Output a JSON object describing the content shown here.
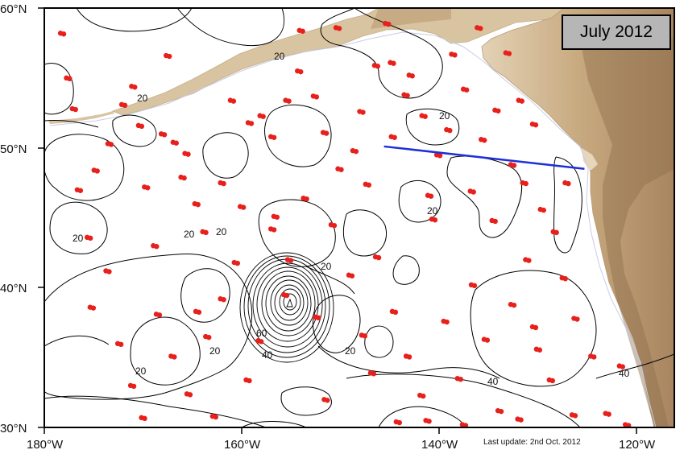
{
  "title": "July 2012",
  "update_note": "Last update: 2nd Oct. 2012",
  "x_ticks": [
    "180°W",
    "160°W",
    "140°W",
    "120°W"
  ],
  "y_ticks": [
    "60°N",
    "50°N",
    "40°N",
    "30°N"
  ],
  "contour_labels": [
    "20",
    "20",
    "20",
    "20",
    "20",
    "20",
    "20",
    "20",
    "20",
    "20",
    "40",
    "40",
    "40",
    "60",
    "20"
  ],
  "colors": {
    "land": "#c8b08c",
    "mountain": "#9a7a56",
    "float": "#e8201c",
    "section_line": "#1f2fd8",
    "contour": "#000000",
    "coast_faint": "#c8cce8"
  },
  "section_line": {
    "start_lon": -145.6,
    "start_lat": 50.1,
    "end_lon": -125.3,
    "end_lat": 48.5
  },
  "floats": [
    [
      -178.2,
      58.2
    ],
    [
      -177.0,
      52.8
    ],
    [
      -176.5,
      47.0
    ],
    [
      -175.5,
      43.6
    ],
    [
      -174.8,
      48.4
    ],
    [
      -173.4,
      50.3
    ],
    [
      -172.0,
      53.1
    ],
    [
      -171.0,
      54.4
    ],
    [
      -170.3,
      51.6
    ],
    [
      -169.7,
      47.2
    ],
    [
      -168.8,
      43.0
    ],
    [
      -168.0,
      51.0
    ],
    [
      -167.5,
      56.6
    ],
    [
      -166.8,
      50.4
    ],
    [
      -165.6,
      49.6
    ],
    [
      -164.6,
      46.0
    ],
    [
      -163.8,
      44.0
    ],
    [
      -162.0,
      47.5
    ],
    [
      -161.0,
      53.4
    ],
    [
      -160.0,
      45.8
    ],
    [
      -159.2,
      51.8
    ],
    [
      -158.0,
      52.3
    ],
    [
      -156.9,
      50.8
    ],
    [
      -155.4,
      53.4
    ],
    [
      -154.2,
      55.5
    ],
    [
      -152.6,
      53.7
    ],
    [
      -151.6,
      51.1
    ],
    [
      -150.1,
      48.5
    ],
    [
      -148.6,
      49.8
    ],
    [
      -147.3,
      47.4
    ],
    [
      -146.4,
      55.9
    ],
    [
      -144.8,
      56.1
    ],
    [
      -143.4,
      53.8
    ],
    [
      -141.6,
      52.3
    ],
    [
      -140.1,
      49.5
    ],
    [
      -139.1,
      51.3
    ],
    [
      -137.4,
      54.2
    ],
    [
      -136.7,
      46.9
    ],
    [
      -135.6,
      50.6
    ],
    [
      -134.2,
      52.7
    ],
    [
      -132.6,
      48.8
    ],
    [
      -131.4,
      47.5
    ],
    [
      -130.4,
      51.7
    ],
    [
      -129.6,
      45.6
    ],
    [
      -128.3,
      44.0
    ],
    [
      -127.1,
      47.5
    ],
    [
      -175.2,
      38.6
    ],
    [
      -173.6,
      41.2
    ],
    [
      -172.4,
      36.0
    ],
    [
      -171.1,
      33.0
    ],
    [
      -170.0,
      30.7
    ],
    [
      -168.5,
      38.1
    ],
    [
      -167.0,
      35.1
    ],
    [
      -165.4,
      32.4
    ],
    [
      -163.5,
      36.5
    ],
    [
      -162.0,
      39.2
    ],
    [
      -160.6,
      41.8
    ],
    [
      -159.4,
      33.4
    ],
    [
      -158.2,
      36.2
    ],
    [
      -156.6,
      45.1
    ],
    [
      -155.2,
      42.0
    ],
    [
      -153.6,
      46.4
    ],
    [
      -152.4,
      37.9
    ],
    [
      -150.8,
      44.5
    ],
    [
      -149.0,
      40.9
    ],
    [
      -147.7,
      36.6
    ],
    [
      -146.3,
      42.2
    ],
    [
      -144.6,
      38.3
    ],
    [
      -143.2,
      35.1
    ],
    [
      -141.8,
      32.3
    ],
    [
      -140.6,
      44.9
    ],
    [
      -139.4,
      37.6
    ],
    [
      -138.0,
      33.5
    ],
    [
      -136.6,
      40.2
    ],
    [
      -135.3,
      36.3
    ],
    [
      -133.9,
      31.2
    ],
    [
      -132.6,
      38.8
    ],
    [
      -131.1,
      42.0
    ],
    [
      -130.0,
      35.6
    ],
    [
      -128.7,
      33.4
    ],
    [
      -127.4,
      40.7
    ],
    [
      -126.2,
      37.8
    ],
    [
      -124.5,
      35.1
    ],
    [
      -123.0,
      31.0
    ],
    [
      -121.6,
      34.4
    ],
    [
      -177.6,
      55.0
    ],
    [
      -154.0,
      58.4
    ],
    [
      -150.3,
      58.6
    ],
    [
      -145.3,
      58.9
    ],
    [
      -142.9,
      55.2
    ],
    [
      -138.6,
      56.7
    ],
    [
      -136.0,
      58.6
    ],
    [
      -133.1,
      56.8
    ],
    [
      -131.8,
      53.4
    ],
    [
      -147.9,
      52.6
    ],
    [
      -144.7,
      50.8
    ],
    [
      -156.9,
      44.2
    ],
    [
      -155.6,
      39.5
    ],
    [
      -146.8,
      33.9
    ],
    [
      -141.0,
      46.6
    ],
    [
      -134.5,
      44.8
    ],
    [
      -166.0,
      47.9
    ],
    [
      -164.5,
      38.3
    ],
    [
      -162.8,
      30.8
    ],
    [
      -144.2,
      30.4
    ],
    [
      -141.2,
      30.5
    ],
    [
      -137.5,
      30.2
    ],
    [
      -131.9,
      30.6
    ],
    [
      -126.4,
      30.9
    ],
    [
      -121.0,
      30.2
    ],
    [
      -130.4,
      37.2
    ],
    [
      -151.5,
      32.0
    ]
  ]
}
